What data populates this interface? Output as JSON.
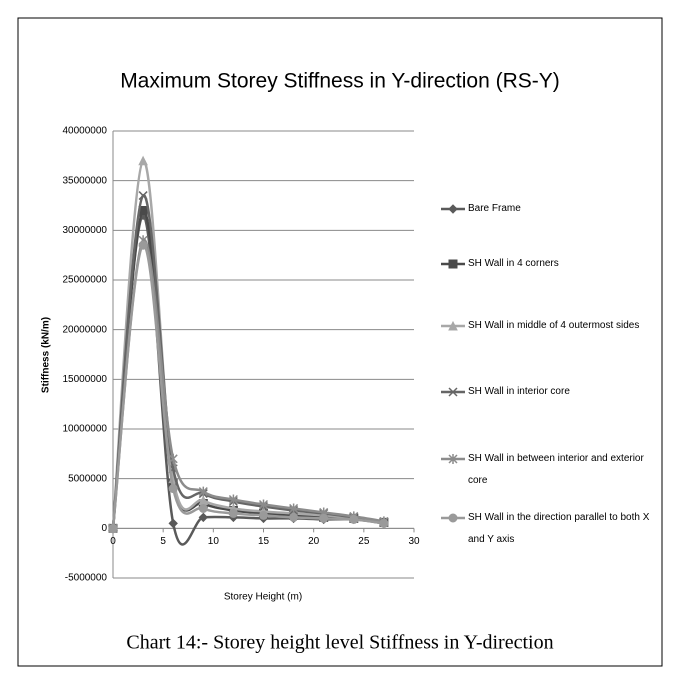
{
  "chart_data": {
    "type": "line",
    "smooth": true,
    "title": "Maximum Storey Stiffness in Y-direction (RS-Y)",
    "xlabel": "Storey Height (m)",
    "ylabel": "Stiffness (kN/m)",
    "caption": "Chart 14:- Storey height level Stiffness in Y-direction",
    "x": [
      0,
      3,
      6,
      9,
      12,
      15,
      18,
      21,
      24,
      27
    ],
    "series": [
      {
        "name": "Bare Frame",
        "color": "#5a5a5a",
        "marker": "diamond",
        "values": [
          0,
          31500000,
          500000,
          1100000,
          1100000,
          1000000,
          1000000,
          900000,
          900000,
          500000
        ]
      },
      {
        "name": "SH Wall in 4 corners",
        "color": "#4a4a4a",
        "marker": "square",
        "values": [
          0,
          32000000,
          4500000,
          2500000,
          1800000,
          1500000,
          1300000,
          1100000,
          1000000,
          600000
        ]
      },
      {
        "name": "SH Wall in middle of 4 outermost sides",
        "color": "#a8a8a8",
        "marker": "triangle",
        "values": [
          0,
          37000000,
          5000000,
          2800000,
          2000000,
          1700000,
          1500000,
          1300000,
          1100000,
          700000
        ]
      },
      {
        "name": "SH Wall in interior core",
        "color": "#666666",
        "marker": "x",
        "values": [
          0,
          33500000,
          6000000,
          3500000,
          2700000,
          2200000,
          1800000,
          1500000,
          1100000,
          600000
        ]
      },
      {
        "name": "SH Wall in between interior and exterior core",
        "color": "#8c8c8c",
        "marker": "asterisk",
        "values": [
          0,
          29000000,
          7000000,
          3700000,
          2900000,
          2400000,
          2000000,
          1600000,
          1200000,
          700000
        ]
      },
      {
        "name": "SH Wall in the direction parallel to both X and Y axis",
        "color": "#9a9a9a",
        "marker": "circle",
        "values": [
          0,
          28500000,
          4000000,
          2000000,
          1500000,
          1300000,
          1100000,
          1000000,
          900000,
          500000
        ]
      }
    ],
    "xlim": [
      0,
      30
    ],
    "xticks": [
      0,
      5,
      10,
      15,
      20,
      25,
      30
    ],
    "ylim": [
      -5000000,
      40000000
    ],
    "yticks": [
      -5000000,
      0,
      5000000,
      10000000,
      15000000,
      20000000,
      25000000,
      30000000,
      35000000,
      40000000
    ],
    "grid": true,
    "legend": "right"
  }
}
